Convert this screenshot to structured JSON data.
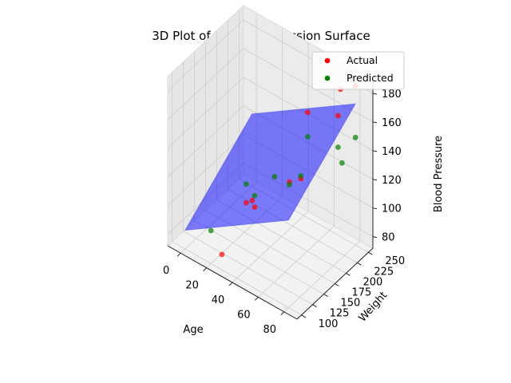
{
  "chart_data": {
    "type": "scatter",
    "title": "3D Plot of Linear Regression Surface",
    "xlabel": "Age",
    "ylabel": "Weight",
    "zlabel": "Blood Pressure",
    "x_ticks": [
      0,
      20,
      40,
      60,
      80
    ],
    "y_ticks": [
      100,
      125,
      150,
      175,
      200,
      225,
      250
    ],
    "z_ticks": [
      80,
      100,
      120,
      140,
      160,
      180
    ],
    "xlim": [
      -10,
      90
    ],
    "ylim": [
      90,
      260
    ],
    "zlim": [
      72,
      190
    ],
    "grid": true,
    "legend_position": "upper right",
    "colors": {
      "actual": "#ff0000",
      "predicted": "#008000",
      "surface": "#0000ff"
    },
    "surface": {
      "note_shape": "plane",
      "x_range": [
        0,
        80
      ],
      "y_range": [
        100,
        250
      ],
      "coefficients": {
        "intercept": 60,
        "age": 0.6,
        "weight": 0.25
      }
    },
    "series": [
      {
        "name": "Actual",
        "color": "#ff0000",
        "points": [
          {
            "x": 25,
            "y": 110,
            "z": 78
          },
          {
            "x": 40,
            "y": 140,
            "z": 110
          },
          {
            "x": 30,
            "y": 150,
            "z": 105
          },
          {
            "x": 45,
            "y": 120,
            "z": 123
          },
          {
            "x": 55,
            "y": 200,
            "z": 120
          },
          {
            "x": 50,
            "y": 230,
            "z": 155
          },
          {
            "x": 70,
            "y": 240,
            "z": 160
          },
          {
            "x": 65,
            "y": 260,
            "z": 170
          },
          {
            "x": 80,
            "y": 250,
            "z": 183
          },
          {
            "x": 60,
            "y": 160,
            "z": 132
          }
        ]
      },
      {
        "name": "Predicted",
        "color": "#008000",
        "points": [
          {
            "x": 20,
            "y": 100,
            "z": 95
          },
          {
            "x": 30,
            "y": 150,
            "z": 118
          },
          {
            "x": 40,
            "y": 140,
            "z": 118
          },
          {
            "x": 45,
            "y": 170,
            "z": 125
          },
          {
            "x": 55,
            "y": 200,
            "z": 122
          },
          {
            "x": 50,
            "y": 230,
            "z": 138
          },
          {
            "x": 70,
            "y": 240,
            "z": 138
          },
          {
            "x": 80,
            "y": 250,
            "z": 147
          },
          {
            "x": 60,
            "y": 160,
            "z": 130
          },
          {
            "x": 80,
            "y": 220,
            "z": 138
          }
        ]
      }
    ]
  }
}
